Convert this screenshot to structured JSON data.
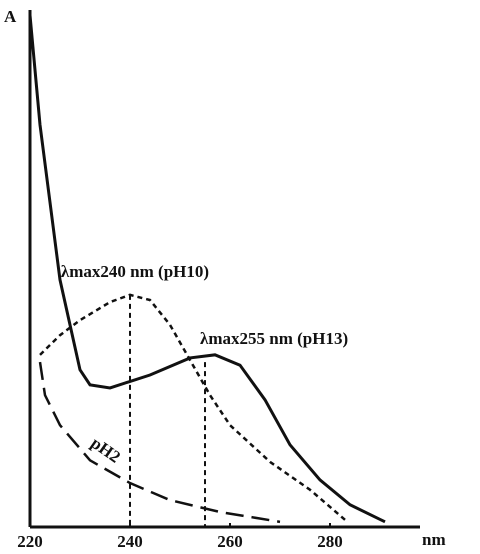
{
  "chart_data": {
    "type": "line",
    "y_label": "A",
    "x_label": "nm",
    "xlim": [
      220,
      298
    ],
    "ylim": [
      0,
      100
    ],
    "xticks": [
      220,
      240,
      260,
      280
    ],
    "series": [
      {
        "color": "#111111",
        "dash": "solid",
        "x": [
          220,
          222,
          226,
          230,
          232,
          236,
          244,
          252,
          257,
          262,
          267,
          272,
          278,
          284,
          291
        ],
        "values": [
          99,
          77.8,
          47.8,
          30.4,
          27.5,
          26.9,
          29.4,
          32.7,
          33.3,
          31.3,
          24.6,
          15.9,
          9.1,
          4.3,
          1.0
        ]
      },
      {
        "color": "#111111",
        "dash": "short",
        "x": [
          222,
          226,
          230,
          236,
          240,
          244,
          248,
          252,
          256,
          260,
          268,
          276,
          283
        ],
        "values": [
          33.3,
          37.1,
          40,
          43.5,
          44.9,
          43.9,
          39.1,
          32.3,
          25.5,
          19.7,
          12.6,
          7.2,
          1.4
        ]
      },
      {
        "name": "pH2",
        "color": "#111111",
        "dash": "long",
        "x": [
          222,
          223,
          226,
          232,
          240,
          248,
          258,
          270
        ],
        "values": [
          31.9,
          25.5,
          19.7,
          12.9,
          8.5,
          5.2,
          2.9,
          1.0
        ]
      }
    ],
    "annotations": [
      {
        "text": "λmax240 nm (pH10)",
        "x": 240,
        "y": 44.9
      },
      {
        "text": "λmax255 nm (pH13)",
        "x": 255,
        "y": 31.9
      }
    ]
  }
}
